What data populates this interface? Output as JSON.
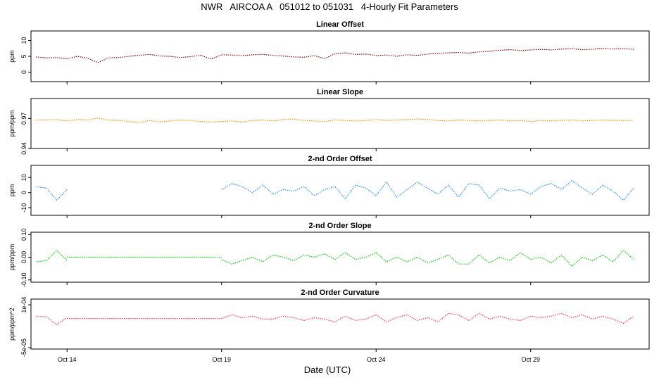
{
  "title": "NWR   AIRCOA A   051012 to 051031   4-Hourly Fit Parameters",
  "xlabel": "Date (UTC)",
  "x_ticks": [
    "Oct 14",
    "Oct 19",
    "Oct 24",
    "Oct 29"
  ],
  "chart_data": [
    {
      "type": "line",
      "title": "Linear Offset",
      "ylabel": "ppm",
      "ylim": [
        -3,
        13
      ],
      "yticks": [
        "0",
        "5",
        "10"
      ],
      "xlim": [
        "2005-10-12 20:00",
        "2005-11-01 20:00"
      ],
      "color": "#8b0000",
      "series": [
        {
          "x": [
            "2005-10-13 00:00",
            "2005-10-13 08:00",
            "2005-10-13 16:00",
            "2005-10-14 00:00",
            "2005-10-14 08:00",
            "2005-10-14 16:00",
            "2005-10-15 00:00",
            "2005-10-15 08:00",
            "2005-10-15 16:00",
            "2005-10-16 00:00",
            "2005-10-16 08:00",
            "2005-10-16 16:00",
            "2005-10-17 00:00",
            "2005-10-17 08:00",
            "2005-10-17 16:00",
            "2005-10-18 00:00",
            "2005-10-18 08:00",
            "2005-10-18 16:00",
            "2005-10-19 00:00",
            "2005-10-19 08:00",
            "2005-10-19 16:00",
            "2005-10-20 00:00",
            "2005-10-20 08:00",
            "2005-10-20 16:00",
            "2005-10-21 00:00",
            "2005-10-21 08:00",
            "2005-10-21 16:00",
            "2005-10-22 00:00",
            "2005-10-22 08:00",
            "2005-10-22 16:00",
            "2005-10-23 00:00",
            "2005-10-23 08:00",
            "2005-10-23 16:00",
            "2005-10-24 00:00",
            "2005-10-24 08:00",
            "2005-10-24 16:00",
            "2005-10-25 00:00",
            "2005-10-25 08:00",
            "2005-10-25 16:00",
            "2005-10-26 00:00",
            "2005-10-26 08:00",
            "2005-10-26 16:00",
            "2005-10-27 00:00",
            "2005-10-27 08:00",
            "2005-10-27 16:00",
            "2005-10-28 00:00",
            "2005-10-28 08:00",
            "2005-10-28 16:00",
            "2005-10-29 00:00",
            "2005-10-29 08:00",
            "2005-10-29 16:00",
            "2005-10-30 00:00",
            "2005-10-30 08:00",
            "2005-10-30 16:00",
            "2005-10-31 00:00",
            "2005-10-31 08:00",
            "2005-10-31 16:00",
            "2005-11-01 00:00",
            "2005-11-01 08:00"
          ],
          "y": [
            4.8,
            4.5,
            4.6,
            4.2,
            5.0,
            4.4,
            3.0,
            4.5,
            4.6,
            5.0,
            5.3,
            5.6,
            5.1,
            5.0,
            4.6,
            4.9,
            5.3,
            4.1,
            5.5,
            5.4,
            5.2,
            5.5,
            5.6,
            5.3,
            5.1,
            4.8,
            4.7,
            5.2,
            4.3,
            5.8,
            6.1,
            5.6,
            5.7,
            5.2,
            5.4,
            5.0,
            5.5,
            5.3,
            5.7,
            5.9,
            6.1,
            6.2,
            6.0,
            6.4,
            6.6,
            6.9,
            7.1,
            6.8,
            7.0,
            7.2,
            7.0,
            7.3,
            7.4,
            7.1,
            7.2,
            7.5,
            7.3,
            7.4,
            7.2
          ]
        }
      ]
    },
    {
      "type": "line",
      "title": "Linear Slope",
      "ylabel": "ppm/ppm",
      "ylim": [
        0.94,
        0.99
      ],
      "yticks": [
        "0.94",
        "0.97"
      ],
      "xlim": [
        "2005-10-12 20:00",
        "2005-11-01 20:00"
      ],
      "color": "#ff8c00",
      "series": [
        {
          "x": [
            "2005-10-13 00:00",
            "2005-10-13 08:00",
            "2005-10-13 16:00",
            "2005-10-14 00:00",
            "2005-10-14 08:00",
            "2005-10-14 16:00",
            "2005-10-15 00:00",
            "2005-10-15 08:00",
            "2005-10-15 16:00",
            "2005-10-16 00:00",
            "2005-10-16 08:00",
            "2005-10-16 16:00",
            "2005-10-17 00:00",
            "2005-10-17 08:00",
            "2005-10-17 16:00",
            "2005-10-18 00:00",
            "2005-10-18 08:00",
            "2005-10-18 16:00",
            "2005-10-19 00:00",
            "2005-10-19 08:00",
            "2005-10-19 16:00",
            "2005-10-20 00:00",
            "2005-10-20 08:00",
            "2005-10-20 16:00",
            "2005-10-21 00:00",
            "2005-10-21 08:00",
            "2005-10-21 16:00",
            "2005-10-22 00:00",
            "2005-10-22 08:00",
            "2005-10-22 16:00",
            "2005-10-23 00:00",
            "2005-10-23 08:00",
            "2005-10-23 16:00",
            "2005-10-24 00:00",
            "2005-10-24 08:00",
            "2005-10-24 16:00",
            "2005-10-25 00:00",
            "2005-10-25 08:00",
            "2005-10-25 16:00",
            "2005-10-26 00:00",
            "2005-10-26 08:00",
            "2005-10-26 16:00",
            "2005-10-27 00:00",
            "2005-10-27 08:00",
            "2005-10-27 16:00",
            "2005-10-28 00:00",
            "2005-10-28 08:00",
            "2005-10-28 16:00",
            "2005-10-29 00:00",
            "2005-10-29 08:00",
            "2005-10-29 16:00",
            "2005-10-30 00:00",
            "2005-10-30 08:00",
            "2005-10-30 16:00",
            "2005-10-31 00:00",
            "2005-10-31 08:00",
            "2005-10-31 16:00",
            "2005-11-01 00:00",
            "2005-11-01 08:00"
          ],
          "y": [
            0.9685,
            0.9685,
            0.969,
            0.9675,
            0.969,
            0.9685,
            0.9705,
            0.9685,
            0.968,
            0.967,
            0.966,
            0.968,
            0.9665,
            0.9675,
            0.9685,
            0.968,
            0.967,
            0.9665,
            0.967,
            0.9675,
            0.9665,
            0.968,
            0.9685,
            0.9675,
            0.969,
            0.9695,
            0.968,
            0.9675,
            0.967,
            0.9685,
            0.968,
            0.9675,
            0.968,
            0.969,
            0.968,
            0.9685,
            0.969,
            0.9695,
            0.969,
            0.968,
            0.9675,
            0.9685,
            0.968,
            0.9675,
            0.968,
            0.9685,
            0.9675,
            0.968,
            0.967,
            0.968,
            0.9675,
            0.968,
            0.9685,
            0.9675,
            0.968,
            0.9685,
            0.968,
            0.968,
            0.968
          ]
        }
      ]
    },
    {
      "type": "line",
      "title": "2-nd Order Offset",
      "ylabel": "ppm",
      "ylim": [
        -15,
        18
      ],
      "yticks": [
        "-10",
        "0",
        "10"
      ],
      "xlim": [
        "2005-10-12 20:00",
        "2005-11-01 20:00"
      ],
      "color": "#1e90ff",
      "series": [
        {
          "x": [
            "2005-10-13 00:00",
            "2005-10-13 08:00",
            "2005-10-13 16:00",
            "2005-10-14 00:00"
          ],
          "y": [
            4,
            3,
            -5,
            2
          ]
        },
        {
          "x": [
            "2005-10-19 00:00",
            "2005-10-19 08:00",
            "2005-10-19 16:00",
            "2005-10-20 00:00",
            "2005-10-20 08:00",
            "2005-10-20 16:00",
            "2005-10-21 00:00",
            "2005-10-21 08:00",
            "2005-10-21 16:00",
            "2005-10-22 00:00",
            "2005-10-22 08:00",
            "2005-10-22 16:00",
            "2005-10-23 00:00",
            "2005-10-23 08:00",
            "2005-10-23 16:00",
            "2005-10-24 00:00",
            "2005-10-24 08:00",
            "2005-10-24 16:00",
            "2005-10-25 00:00",
            "2005-10-25 08:00",
            "2005-10-25 16:00",
            "2005-10-26 00:00",
            "2005-10-26 08:00",
            "2005-10-26 16:00",
            "2005-10-27 00:00",
            "2005-10-27 08:00",
            "2005-10-27 16:00",
            "2005-10-28 00:00",
            "2005-10-28 08:00",
            "2005-10-28 16:00",
            "2005-10-29 00:00",
            "2005-10-29 08:00",
            "2005-10-29 16:00",
            "2005-10-30 00:00",
            "2005-10-30 08:00",
            "2005-10-30 16:00",
            "2005-10-31 00:00",
            "2005-10-31 08:00",
            "2005-10-31 16:00",
            "2005-11-01 00:00",
            "2005-11-01 08:00"
          ],
          "y": [
            2,
            6,
            4,
            0,
            5,
            -1,
            2,
            1,
            4,
            -2,
            2,
            4,
            -4,
            5,
            3,
            -2,
            7,
            -3,
            2,
            7,
            3,
            -1,
            5,
            -3,
            6,
            5,
            -4,
            3,
            1,
            2,
            -1,
            4,
            6,
            2,
            8,
            3,
            -1,
            5,
            1,
            -5,
            3
          ]
        }
      ]
    },
    {
      "type": "line",
      "title": "2-nd Order Slope",
      "ylabel": "ppm/ppm",
      "ylim": [
        -0.11,
        0.11
      ],
      "yticks": [
        "-0.10",
        "0.00",
        "0.10"
      ],
      "xlim": [
        "2005-10-12 20:00",
        "2005-11-01 20:00"
      ],
      "color": "#00cc00",
      "series": [
        {
          "x": [
            "2005-10-13 00:00",
            "2005-10-13 08:00",
            "2005-10-13 16:00",
            "2005-10-14 00:00"
          ],
          "y": [
            -0.02,
            -0.015,
            0.03,
            -0.015
          ]
        },
        {
          "x": [
            "2005-10-14 00:00",
            "2005-10-19 00:00"
          ],
          "y": [
            0.0,
            0.0
          ]
        },
        {
          "x": [
            "2005-10-19 00:00",
            "2005-10-19 08:00",
            "2005-10-19 16:00",
            "2005-10-20 00:00",
            "2005-10-20 08:00",
            "2005-10-20 16:00",
            "2005-10-21 00:00",
            "2005-10-21 08:00",
            "2005-10-21 16:00",
            "2005-10-22 00:00",
            "2005-10-22 08:00",
            "2005-10-22 16:00",
            "2005-10-23 00:00",
            "2005-10-23 08:00",
            "2005-10-23 16:00",
            "2005-10-24 00:00",
            "2005-10-24 08:00",
            "2005-10-24 16:00",
            "2005-10-25 00:00",
            "2005-10-25 08:00",
            "2005-10-25 16:00",
            "2005-10-26 00:00",
            "2005-10-26 08:00",
            "2005-10-26 16:00",
            "2005-10-27 00:00",
            "2005-10-27 08:00",
            "2005-10-27 16:00",
            "2005-10-28 00:00",
            "2005-10-28 08:00",
            "2005-10-28 16:00",
            "2005-10-29 00:00",
            "2005-10-29 08:00",
            "2005-10-29 16:00",
            "2005-10-30 00:00",
            "2005-10-30 08:00",
            "2005-10-30 16:00",
            "2005-10-31 00:00",
            "2005-10-31 08:00",
            "2005-10-31 16:00",
            "2005-11-01 00:00",
            "2005-11-01 08:00"
          ],
          "y": [
            -0.01,
            -0.03,
            -0.015,
            0.0,
            -0.02,
            0.01,
            0.0,
            -0.015,
            0.01,
            0.0,
            0.015,
            -0.01,
            0.02,
            -0.01,
            0.0,
            0.02,
            -0.02,
            0.0,
            -0.02,
            0.0,
            -0.025,
            -0.01,
            0.01,
            -0.03,
            -0.03,
            0.01,
            -0.025,
            0.0,
            -0.015,
            0.02,
            -0.01,
            0.0,
            -0.025,
            0.01,
            -0.04,
            0.0,
            -0.015,
            0.01,
            -0.02,
            0.03,
            -0.01
          ]
        }
      ]
    },
    {
      "type": "line",
      "title": "2-nd Order Curvature",
      "ylabel": "ppm/ppm^2",
      "ylim": [
        -5.5e-05,
        0.00012
      ],
      "yticks": [
        "-5e-05",
        "1e-04"
      ],
      "xlim": [
        "2005-10-12 20:00",
        "2005-11-01 20:00"
      ],
      "color": "#ff3355",
      "series": [
        {
          "x": [
            "2005-10-13 00:00",
            "2005-10-13 08:00",
            "2005-10-13 16:00",
            "2005-10-14 00:00"
          ],
          "y": [
            6e-05,
            5.8e-05,
            3e-05,
            5.5e-05
          ]
        },
        {
          "x": [
            "2005-10-14 00:00",
            "2005-10-19 00:00"
          ],
          "y": [
            5.2e-05,
            5.2e-05
          ]
        },
        {
          "x": [
            "2005-10-19 00:00",
            "2005-10-19 08:00",
            "2005-10-19 16:00",
            "2005-10-20 00:00",
            "2005-10-20 08:00",
            "2005-10-20 16:00",
            "2005-10-21 00:00",
            "2005-10-21 08:00",
            "2005-10-21 16:00",
            "2005-10-22 00:00",
            "2005-10-22 08:00",
            "2005-10-22 16:00",
            "2005-10-23 00:00",
            "2005-10-23 08:00",
            "2005-10-23 16:00",
            "2005-10-24 00:00",
            "2005-10-24 08:00",
            "2005-10-24 16:00",
            "2005-10-25 00:00",
            "2005-10-25 08:00",
            "2005-10-25 16:00",
            "2005-10-26 00:00",
            "2005-10-26 08:00",
            "2005-10-26 16:00",
            "2005-10-27 00:00",
            "2005-10-27 08:00",
            "2005-10-27 16:00",
            "2005-10-28 00:00",
            "2005-10-28 08:00",
            "2005-10-28 16:00",
            "2005-10-29 00:00",
            "2005-10-29 08:00",
            "2005-10-29 16:00",
            "2005-10-30 00:00",
            "2005-10-30 08:00",
            "2005-10-30 16:00",
            "2005-10-31 00:00",
            "2005-10-31 08:00",
            "2005-10-31 16:00",
            "2005-11-01 00:00",
            "2005-11-01 08:00"
          ],
          "y": [
            5.2e-05,
            6.5e-05,
            5.5e-05,
            6e-05,
            5e-05,
            5e-05,
            6e-05,
            5.5e-05,
            4.5e-05,
            5.5e-05,
            5e-05,
            4e-05,
            6e-05,
            4.5e-05,
            5e-05,
            6.5e-05,
            4e-05,
            5.5e-05,
            6.5e-05,
            4.5e-05,
            5.5e-05,
            4e-05,
            7e-05,
            6.5e-05,
            4.5e-05,
            7e-05,
            5e-05,
            6e-05,
            5e-05,
            4.5e-05,
            6e-05,
            5.5e-05,
            6e-05,
            7e-05,
            5.5e-05,
            6.5e-05,
            5e-05,
            6e-05,
            5e-05,
            3.5e-05,
            6e-05
          ]
        }
      ]
    }
  ]
}
